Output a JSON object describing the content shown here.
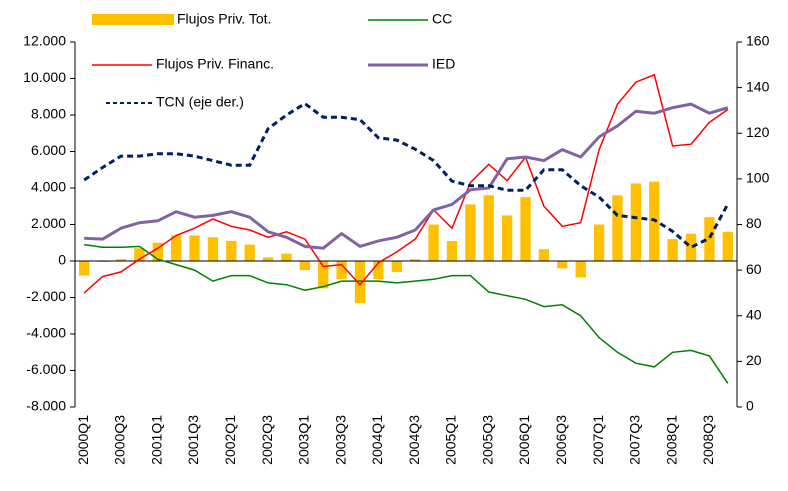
{
  "chart_data": {
    "type": "combo",
    "categories": [
      "2000Q1",
      null,
      "2000Q3",
      null,
      "2001Q1",
      null,
      "2001Q3",
      null,
      "2002Q1",
      null,
      "2002Q3",
      null,
      "2003Q1",
      null,
      "2003Q3",
      null,
      "2004Q1",
      null,
      "2004Q3",
      null,
      "2005Q1",
      null,
      "2005Q3",
      null,
      "2006Q1",
      null,
      "2006Q3",
      null,
      "2007Q1",
      null,
      "2007Q3",
      null,
      "2008Q1",
      null,
      "2008Q3",
      null
    ],
    "series": [
      {
        "name": "Flujos Priv. Tot.",
        "type": "bar",
        "color": "#ffc000",
        "values": [
          -800,
          -50,
          100,
          700,
          1000,
          1400,
          1400,
          1300,
          1100,
          900,
          200,
          400,
          -500,
          -1500,
          -1000,
          -2300,
          -1000,
          -600,
          100,
          2000,
          1100,
          3100,
          3600,
          2500,
          3500,
          650,
          -400,
          -900,
          2000,
          3600,
          4250,
          4350,
          1200,
          1500,
          2400,
          1600
        ]
      },
      {
        "name": "CC",
        "type": "line",
        "color": "#008000",
        "values": [
          900,
          750,
          750,
          800,
          100,
          -200,
          -500,
          -1100,
          -800,
          -800,
          -1200,
          -1300,
          -1600,
          -1400,
          -1100,
          -1100,
          -1100,
          -1200,
          -1100,
          -1000,
          -800,
          -800,
          -1700,
          -1900,
          -2100,
          -2500,
          -2400,
          -3000,
          -4200,
          -5000,
          -5600,
          -5800,
          -5000,
          -4900,
          -5200,
          -6700
        ]
      },
      {
        "name": "Flujos Priv. Financ.",
        "type": "line",
        "color": "#ff0000",
        "values": [
          -1750,
          -850,
          -600,
          100,
          700,
          1400,
          1800,
          2300,
          1900,
          1700,
          1300,
          1600,
          1200,
          -300,
          -200,
          -1300,
          -100,
          500,
          1200,
          2800,
          1800,
          4300,
          5300,
          4400,
          5700,
          3000,
          1900,
          2100,
          6100,
          8600,
          9800,
          10200,
          6300,
          6400,
          7600,
          8300
        ]
      },
      {
        "name": "IED",
        "type": "line",
        "color": "#8064a2",
        "values": [
          1250,
          1200,
          1800,
          2100,
          2200,
          2700,
          2400,
          2500,
          2700,
          2400,
          1600,
          1300,
          800,
          700,
          1500,
          800,
          1100,
          1300,
          1700,
          2800,
          3100,
          3900,
          4000,
          5600,
          5700,
          5500,
          6100,
          5700,
          6800,
          7400,
          8200,
          8100,
          8400,
          8600,
          8100,
          8400
        ]
      },
      {
        "name": "TCN (eje der.)",
        "type": "line",
        "color": "#002060",
        "dashed": true,
        "axis": "y2",
        "values": [
          99.5,
          105,
          110,
          110,
          111,
          111,
          110,
          108,
          106,
          106,
          122,
          128,
          133,
          127,
          127,
          126,
          118,
          117,
          113,
          108,
          99,
          97,
          97,
          95,
          95,
          104,
          104,
          97,
          92,
          84,
          83,
          82,
          77,
          70,
          74,
          89
        ]
      }
    ],
    "ylim": [
      -8000,
      12000
    ],
    "yticks": [
      {
        "value": -8000,
        "label": "-8.000"
      },
      {
        "value": -6000,
        "label": "-6.000"
      },
      {
        "value": -4000,
        "label": "-4.000"
      },
      {
        "value": -2000,
        "label": "-2.000"
      },
      0,
      {
        "value": 2000,
        "label": "2.000"
      },
      {
        "value": 4000,
        "label": "4.000"
      },
      {
        "value": 6000,
        "label": "6.000"
      },
      {
        "value": 8000,
        "label": "8.000"
      },
      {
        "value": 10000,
        "label": "10.000"
      },
      {
        "value": 12000,
        "label": "12.000"
      }
    ],
    "y2lim": [
      0,
      160
    ],
    "y2ticks": [
      0,
      20,
      40,
      60,
      80,
      100,
      120,
      140,
      160
    ],
    "grid": false
  }
}
